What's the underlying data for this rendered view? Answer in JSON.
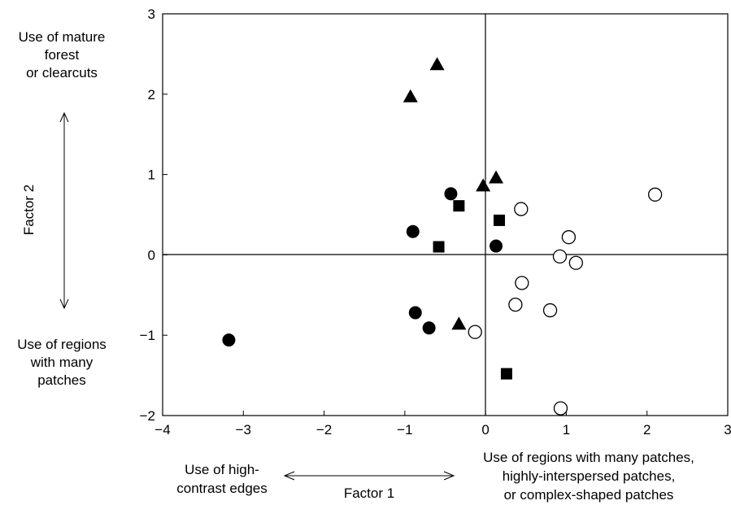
{
  "chart_data": {
    "type": "scatter",
    "xlim": [
      -4,
      3
    ],
    "ylim": [
      -2,
      3
    ],
    "x_ticks": [
      -4,
      -3,
      -2,
      -1,
      0,
      1,
      2,
      3
    ],
    "y_ticks": [
      -2,
      -1,
      0,
      1,
      2,
      3
    ],
    "x_tick_labels": [
      "−4",
      "−3",
      "−2",
      "−1",
      "0",
      "1",
      "2",
      "3"
    ],
    "y_tick_labels": [
      "−2",
      "−1",
      "0",
      "1",
      "2",
      "3"
    ],
    "xlabel": "Factor 1",
    "ylabel": "Factor 2",
    "x_negative_label": [
      "Use of high-",
      "contrast edges"
    ],
    "x_positive_label": [
      "Use of regions with many patches,",
      "highly-interspersed patches,",
      "or complex-shaped patches"
    ],
    "y_positive_label": [
      "Use of mature",
      "forest",
      "or clearcuts"
    ],
    "y_negative_label": [
      "Use of regions",
      "with many",
      "patches"
    ],
    "grid": false,
    "reference_lines": {
      "x": 0,
      "y": 0
    },
    "series": [
      {
        "marker": "filled-triangle",
        "color": "#000000",
        "points": [
          [
            -0.6,
            2.37
          ],
          [
            -0.93,
            1.97
          ],
          [
            -0.03,
            0.86
          ],
          [
            0.13,
            0.96
          ],
          [
            -0.33,
            -0.86
          ]
        ]
      },
      {
        "marker": "filled-circle",
        "color": "#000000",
        "points": [
          [
            -0.43,
            0.76
          ],
          [
            -0.9,
            0.29
          ],
          [
            0.13,
            0.11
          ],
          [
            -0.87,
            -0.72
          ],
          [
            -0.7,
            -0.91
          ],
          [
            -3.18,
            -1.06
          ]
        ]
      },
      {
        "marker": "filled-square",
        "color": "#000000",
        "points": [
          [
            -0.33,
            0.61
          ],
          [
            0.17,
            0.43
          ],
          [
            -0.58,
            0.1
          ],
          [
            0.26,
            -1.48
          ]
        ]
      },
      {
        "marker": "open-circle",
        "color": "#000000",
        "points": [
          [
            0.44,
            0.57
          ],
          [
            2.1,
            0.75
          ],
          [
            1.03,
            0.22
          ],
          [
            0.92,
            -0.02
          ],
          [
            1.12,
            -0.1
          ],
          [
            0.45,
            -0.35
          ],
          [
            0.37,
            -0.62
          ],
          [
            0.8,
            -0.69
          ],
          [
            -0.13,
            -0.96
          ],
          [
            0.93,
            -1.91
          ]
        ]
      }
    ]
  }
}
